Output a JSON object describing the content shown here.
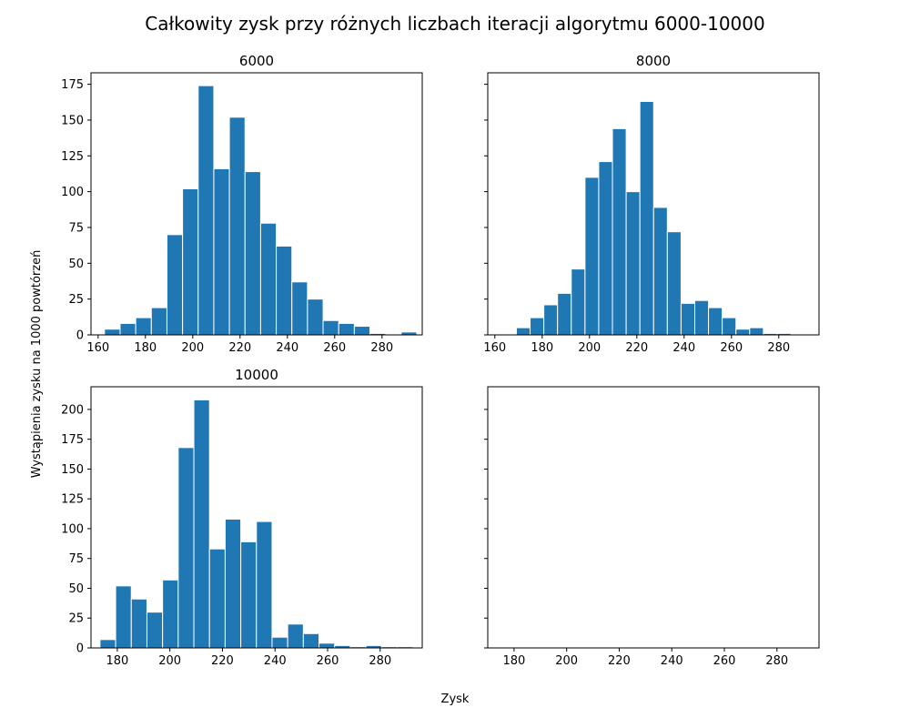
{
  "figure": {
    "suptitle": "Całkowity zysk przy różnych liczbach iteracji algorytmu 6000-10000",
    "xlabel": "Zysk",
    "ylabel": "Wystąpienia zysku na 1000 powtórzeń"
  },
  "chart_data": [
    {
      "type": "bar",
      "title": "6000",
      "xlim": [
        157,
        297
      ],
      "ylim": [
        0,
        183
      ],
      "xticks": [
        160,
        180,
        200,
        220,
        240,
        260,
        280
      ],
      "yticks": [
        0,
        25,
        50,
        75,
        100,
        125,
        150,
        175
      ],
      "bar_width": 6.6,
      "x": [
        166,
        172.6,
        179.2,
        185.8,
        192.4,
        199,
        205.6,
        212.2,
        218.8,
        225.4,
        232,
        238.6,
        245.2,
        251.8,
        258.4,
        265,
        271.6,
        278.2,
        284.8,
        291.4
      ],
      "values": [
        4,
        8,
        12,
        19,
        70,
        102,
        174,
        116,
        152,
        114,
        78,
        62,
        37,
        25,
        10,
        8,
        6,
        1,
        0,
        2
      ]
    },
    {
      "type": "bar",
      "title": "8000",
      "xlim": [
        157,
        297
      ],
      "ylim": [
        0,
        183
      ],
      "xticks": [
        160,
        180,
        200,
        220,
        240,
        260,
        280
      ],
      "yticks": [
        0,
        25,
        50,
        75,
        100,
        125,
        150,
        175
      ],
      "bar_width": 5.8,
      "x": [
        172,
        177.8,
        183.6,
        189.4,
        195.2,
        201,
        206.8,
        212.6,
        218.4,
        224.2,
        230,
        235.8,
        241.6,
        247.4,
        253.2,
        259,
        264.8,
        270.6,
        276.4,
        282.2
      ],
      "values": [
        5,
        12,
        21,
        29,
        46,
        110,
        121,
        144,
        100,
        163,
        89,
        72,
        22,
        24,
        19,
        12,
        4,
        5,
        1,
        1
      ]
    },
    {
      "type": "bar",
      "title": "10000",
      "xlim": [
        170,
        296
      ],
      "ylim": [
        0,
        219
      ],
      "xticks": [
        180,
        200,
        220,
        240,
        260,
        280
      ],
      "yticks": [
        0,
        25,
        50,
        75,
        100,
        125,
        150,
        175,
        200
      ],
      "bar_width": 5.95,
      "x": [
        176.4,
        182.35,
        188.3,
        194.25,
        200.2,
        206.15,
        212.1,
        218.05,
        224,
        229.95,
        235.9,
        241.85,
        247.8,
        253.75,
        259.7,
        265.65,
        271.6,
        277.55,
        283.5,
        289.45
      ],
      "values": [
        7,
        52,
        41,
        30,
        57,
        168,
        208,
        83,
        108,
        89,
        106,
        9,
        20,
        12,
        4,
        2,
        1,
        2,
        1,
        1
      ]
    },
    {
      "type": "bar",
      "title": "",
      "xlim": [
        170,
        296
      ],
      "ylim": [
        0,
        219
      ],
      "xticks": [
        180,
        200,
        220,
        240,
        260,
        280
      ],
      "yticks": [
        0,
        25,
        50,
        75,
        100,
        125,
        150,
        175,
        200
      ],
      "x": [],
      "values": []
    }
  ]
}
